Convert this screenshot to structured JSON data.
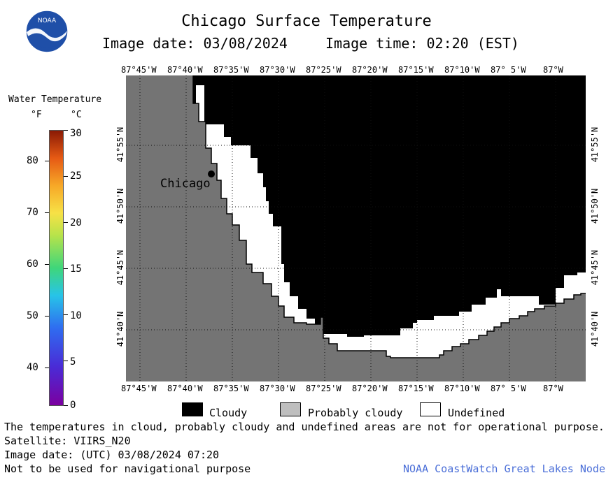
{
  "header": {
    "title": "Chicago Surface Temperature",
    "image_date": "Image date: 03/08/2024",
    "image_time": "Image time: 02:20 (EST)"
  },
  "logo": {
    "text": "NOAA"
  },
  "map": {
    "lon_labels": [
      "87°45'W",
      "87°40'W",
      "87°35'W",
      "87°30'W",
      "87°25'W",
      "87°20'W",
      "87°15'W",
      "87°10'W",
      "87° 5'W",
      "87°W"
    ],
    "lat_labels": [
      "41°55'N",
      "41°50'N",
      "41°45'N",
      "41°40'N"
    ],
    "city_label": "Chicago",
    "colors": {
      "land": "#747474",
      "cloudy": "#000000",
      "probably_cloudy": "#bebebe",
      "undefined": "#ffffff"
    }
  },
  "legend": {
    "title": "Water Temperature",
    "unit_f": "°F",
    "unit_c": "°C",
    "f_ticks": [
      "80",
      "70",
      "60",
      "50",
      "40"
    ],
    "c_ticks": [
      "30",
      "25",
      "20",
      "15",
      "10",
      "5",
      "0"
    ]
  },
  "key": {
    "cloudy": "Cloudy",
    "probably_cloudy": "Probably cloudy",
    "undefined": "Undefined"
  },
  "footer": {
    "disclaimer": "The temperatures in cloud, probably cloudy and undefined areas are not for operational purpose.",
    "satellite": "Satellite: VIIRS_N20",
    "utc_date": "Image date: (UTC) 03/08/2024  07:20",
    "nav_warning": "Not to be used for navigational purpose",
    "credit": "NOAA CoastWatch Great Lakes Node"
  }
}
